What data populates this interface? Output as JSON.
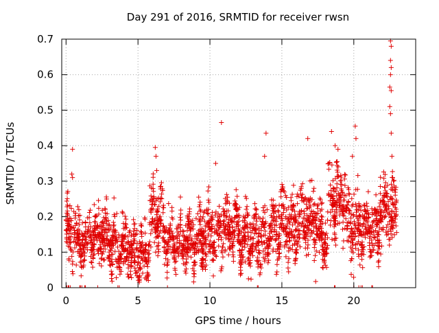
{
  "chart_data": {
    "type": "scatter",
    "title": "Day 291 of 2016, SRMTID for receiver rwsn",
    "xlabel": "GPS time / hours",
    "ylabel": "SRMTID / TECUs",
    "xlim": [
      -0.3,
      24.3
    ],
    "ylim": [
      0,
      0.7
    ],
    "xticks": [
      0,
      5,
      10,
      15,
      20
    ],
    "yticks": [
      0,
      0.1,
      0.2,
      0.3,
      0.4,
      0.5,
      0.6,
      0.7
    ],
    "xtick_labels": [
      "0",
      "5",
      "10",
      "15",
      "20"
    ],
    "ytick_labels": [
      "0",
      "0.1",
      "0.2",
      "0.3",
      "0.4",
      "0.5",
      "0.6",
      "0.7"
    ],
    "grid": true,
    "marker": "+",
    "color": "#e00000",
    "segments": [
      {
        "x": [
          0.0,
          0.7
        ],
        "center": 0.15,
        "spread": 0.07
      },
      {
        "x": [
          0.7,
          1.5
        ],
        "center": 0.12,
        "spread": 0.06
      },
      {
        "x": [
          1.5,
          3.0
        ],
        "center": 0.14,
        "spread": 0.07
      },
      {
        "x": [
          3.0,
          4.5
        ],
        "center": 0.12,
        "spread": 0.06
      },
      {
        "x": [
          4.5,
          5.8
        ],
        "center": 0.09,
        "spread": 0.06
      },
      {
        "x": [
          5.8,
          6.8
        ],
        "center": 0.2,
        "spread": 0.08
      },
      {
        "x": [
          6.8,
          9.0
        ],
        "center": 0.13,
        "spread": 0.06
      },
      {
        "x": [
          9.0,
          10.5
        ],
        "center": 0.14,
        "spread": 0.07
      },
      {
        "x": [
          10.5,
          12.0
        ],
        "center": 0.17,
        "spread": 0.07
      },
      {
        "x": [
          12.0,
          14.0
        ],
        "center": 0.14,
        "spread": 0.07
      },
      {
        "x": [
          14.0,
          16.0
        ],
        "center": 0.17,
        "spread": 0.08
      },
      {
        "x": [
          16.0,
          17.5
        ],
        "center": 0.19,
        "spread": 0.08
      },
      {
        "x": [
          17.5,
          18.2
        ],
        "center": 0.14,
        "spread": 0.07
      },
      {
        "x": [
          18.2,
          19.5
        ],
        "center": 0.24,
        "spread": 0.08
      },
      {
        "x": [
          19.5,
          20.5
        ],
        "center": 0.17,
        "spread": 0.09
      },
      {
        "x": [
          20.5,
          21.8
        ],
        "center": 0.16,
        "spread": 0.07
      },
      {
        "x": [
          21.8,
          22.8
        ],
        "center": 0.22,
        "spread": 0.09
      },
      {
        "x": [
          22.8,
          23.0
        ],
        "center": 0.2,
        "spread": 0.07
      }
    ],
    "zero_markers_x": [
      0.05,
      0.15,
      0.2,
      0.3,
      0.95,
      1.0,
      1.1,
      1.3,
      1.35,
      2.2,
      3.6,
      3.7,
      7.05,
      13.3,
      13.35,
      18.65,
      18.7,
      20.0,
      20.35,
      20.5,
      20.6,
      21.25,
      21.3
    ],
    "outliers": [
      {
        "x": 0.45,
        "y": 0.39
      },
      {
        "x": 0.4,
        "y": 0.32
      },
      {
        "x": 0.45,
        "y": 0.31
      },
      {
        "x": 6.2,
        "y": 0.395
      },
      {
        "x": 6.25,
        "y": 0.37
      },
      {
        "x": 6.3,
        "y": 0.33
      },
      {
        "x": 10.4,
        "y": 0.35
      },
      {
        "x": 10.8,
        "y": 0.465
      },
      {
        "x": 13.9,
        "y": 0.435
      },
      {
        "x": 13.8,
        "y": 0.37
      },
      {
        "x": 16.8,
        "y": 0.42
      },
      {
        "x": 18.45,
        "y": 0.44
      },
      {
        "x": 18.7,
        "y": 0.4
      },
      {
        "x": 18.9,
        "y": 0.39
      },
      {
        "x": 19.9,
        "y": 0.37
      },
      {
        "x": 20.1,
        "y": 0.455
      },
      {
        "x": 20.15,
        "y": 0.42
      },
      {
        "x": 22.55,
        "y": 0.695
      },
      {
        "x": 22.6,
        "y": 0.68
      },
      {
        "x": 22.55,
        "y": 0.64
      },
      {
        "x": 22.6,
        "y": 0.62
      },
      {
        "x": 22.55,
        "y": 0.6
      },
      {
        "x": 22.5,
        "y": 0.565
      },
      {
        "x": 22.6,
        "y": 0.555
      },
      {
        "x": 22.5,
        "y": 0.51
      },
      {
        "x": 22.55,
        "y": 0.49
      },
      {
        "x": 22.6,
        "y": 0.435
      },
      {
        "x": 22.65,
        "y": 0.37
      },
      {
        "x": 22.7,
        "y": 0.31
      },
      {
        "x": 22.75,
        "y": 0.3
      }
    ],
    "points_count": 2600,
    "seed": 291
  }
}
